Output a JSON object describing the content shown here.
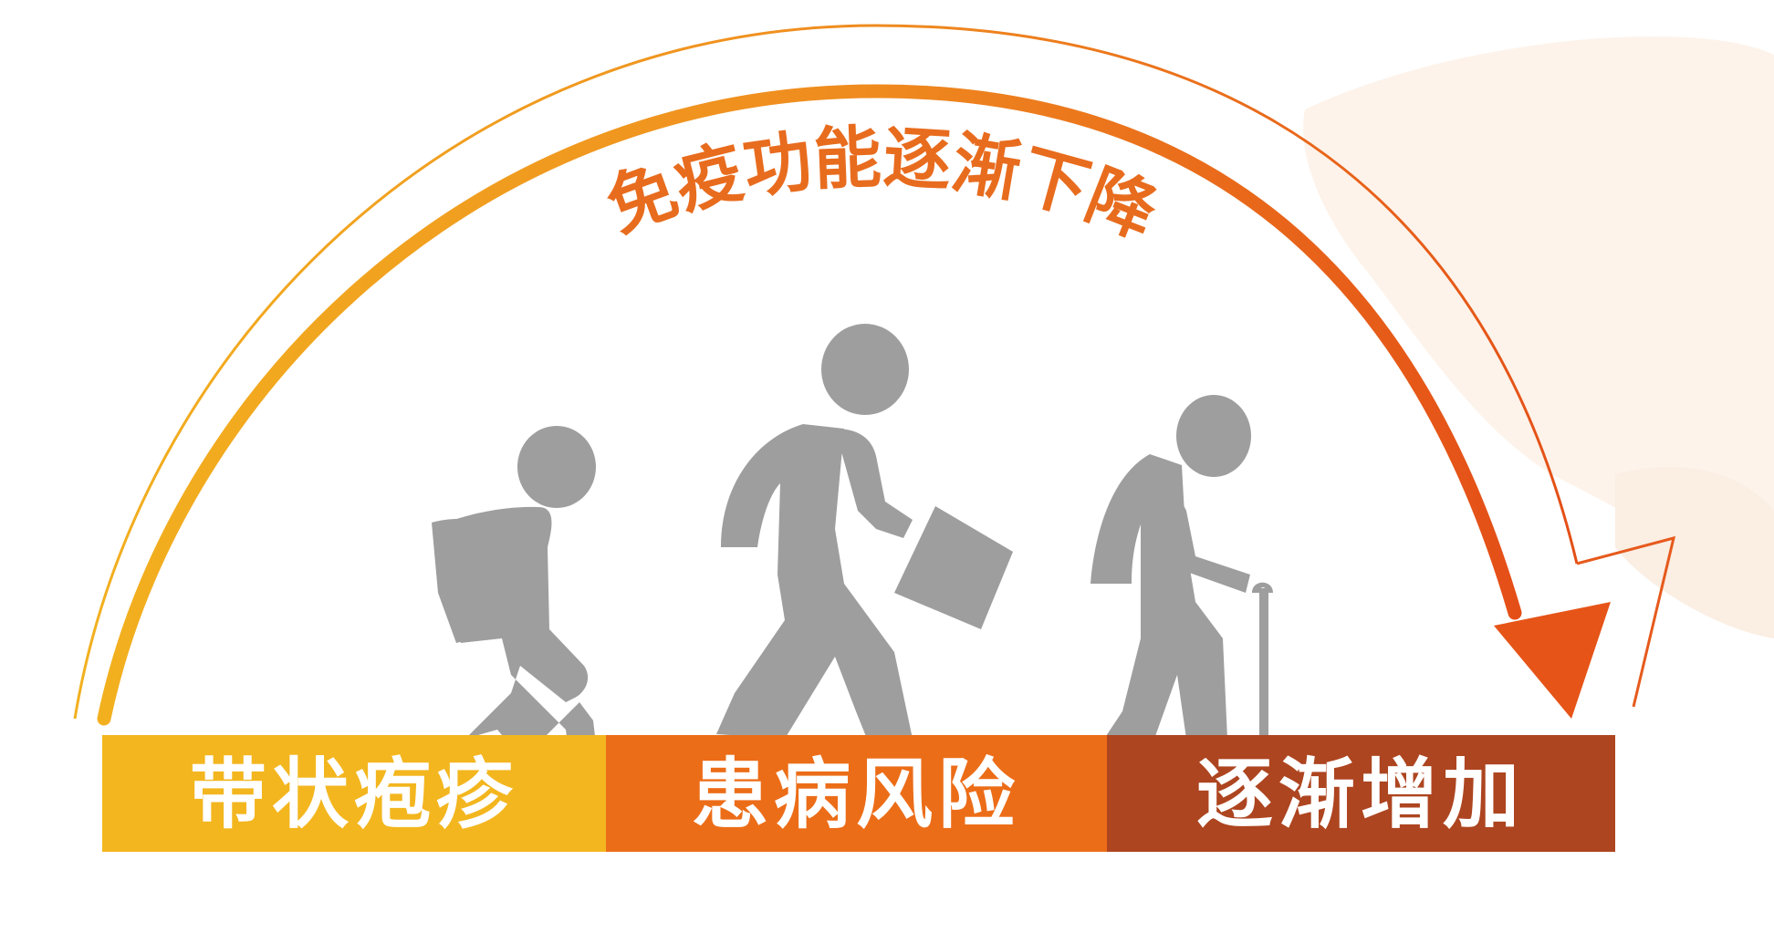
{
  "arc_label": "免疫功能逐渐下降",
  "band": [
    {
      "label": "带状疱疹",
      "color": "#f3b61f"
    },
    {
      "label": "患病风险",
      "color": "#ec6d18"
    },
    {
      "label": "逐渐增加",
      "color": "#ad4520"
    }
  ],
  "colors": {
    "figure": "#9e9e9e",
    "arc_start": "#f0b020",
    "arc_end": "#e65418",
    "background_decoration": "#fbeee3"
  },
  "figures": [
    "child-with-backpack-icon",
    "adult-with-briefcase-icon",
    "elderly-with-cane-icon"
  ]
}
